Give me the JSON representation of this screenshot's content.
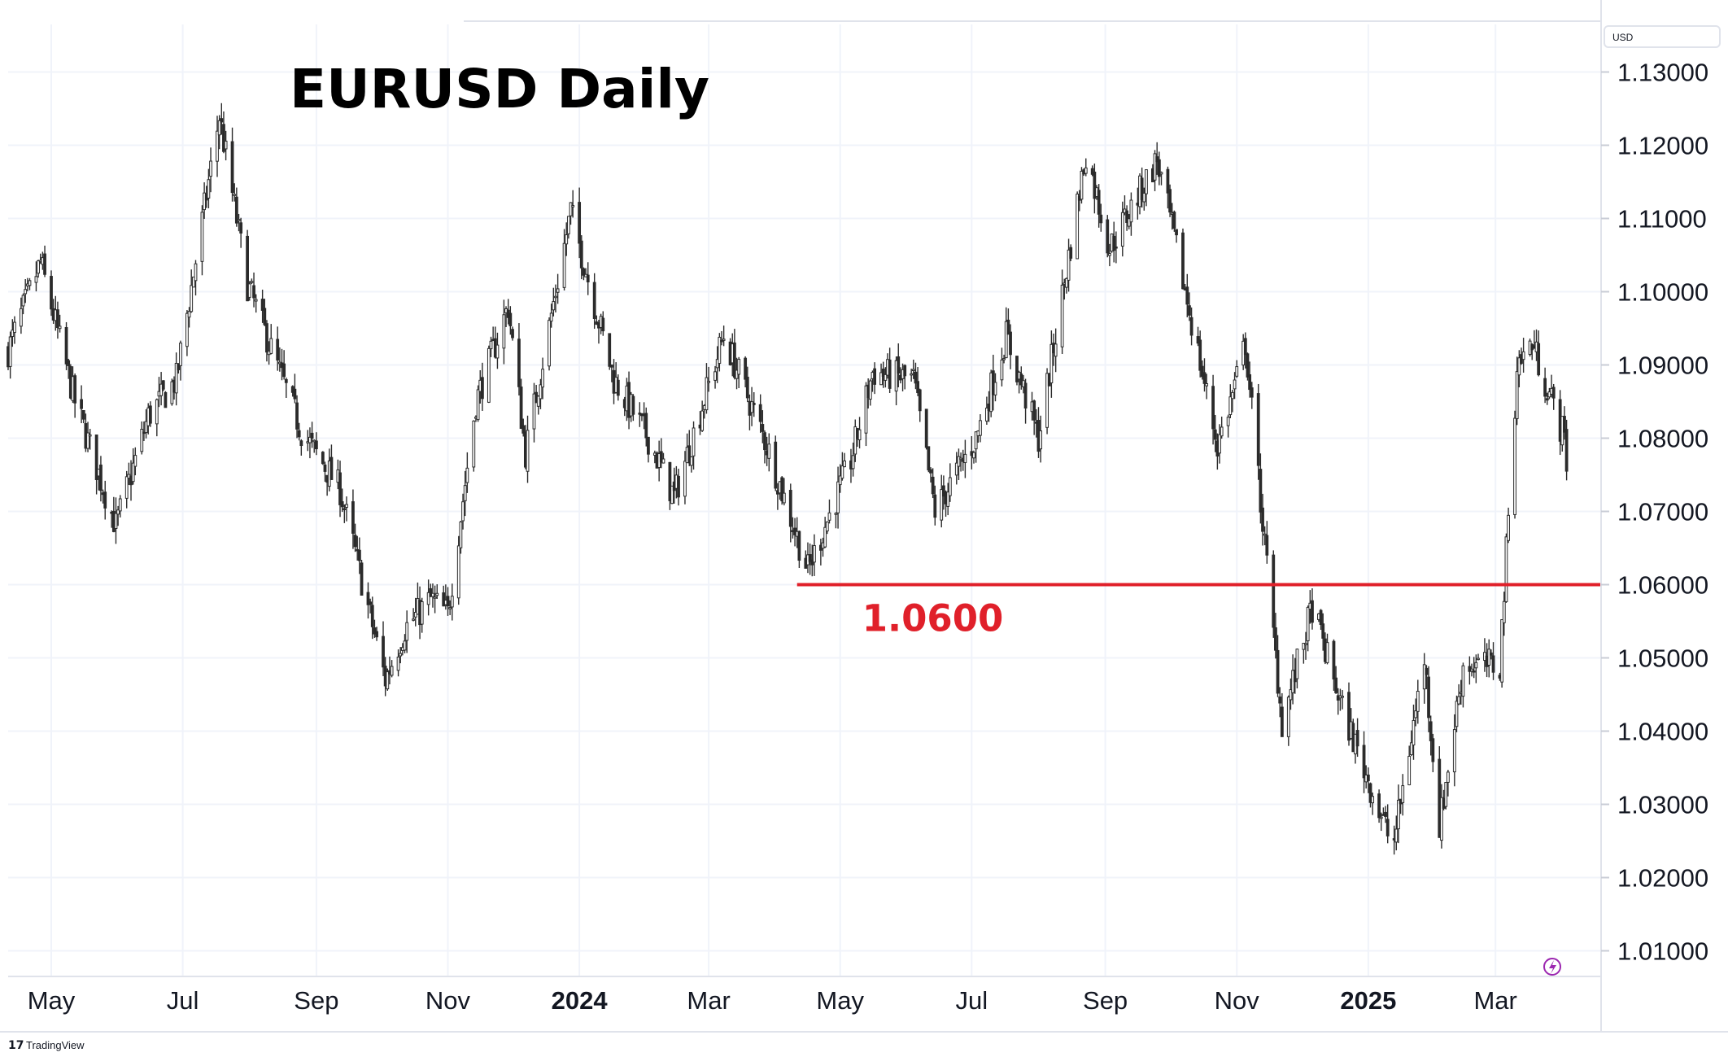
{
  "chart_data": {
    "type": "candlestick",
    "title": "EURUSD Daily",
    "currency_label": "USD",
    "y_ticks": [
      "1.13000",
      "1.12000",
      "1.11000",
      "1.10000",
      "1.09000",
      "1.08000",
      "1.07000",
      "1.06000",
      "1.05000",
      "1.04000",
      "1.03000",
      "1.02000",
      "1.01000"
    ],
    "y_values": [
      1.13,
      1.12,
      1.11,
      1.1,
      1.09,
      1.08,
      1.07,
      1.06,
      1.05,
      1.04,
      1.03,
      1.02,
      1.01
    ],
    "ylim": [
      1.0065,
      1.1365
    ],
    "x_range": [
      "2023-04-11",
      "2025-04-19"
    ],
    "x_ticks": [
      {
        "label": "May",
        "date": "2023-05-01",
        "bold": false
      },
      {
        "label": "Jul",
        "date": "2023-07-01",
        "bold": false
      },
      {
        "label": "Sep",
        "date": "2023-09-01",
        "bold": false
      },
      {
        "label": "Nov",
        "date": "2023-11-01",
        "bold": false
      },
      {
        "label": "2024",
        "date": "2024-01-01",
        "bold": true
      },
      {
        "label": "Mar",
        "date": "2024-03-01",
        "bold": false
      },
      {
        "label": "May",
        "date": "2024-05-01",
        "bold": false
      },
      {
        "label": "Jul",
        "date": "2024-07-01",
        "bold": false
      },
      {
        "label": "Sep",
        "date": "2024-09-01",
        "bold": false
      },
      {
        "label": "Nov",
        "date": "2024-11-01",
        "bold": false
      },
      {
        "label": "2025",
        "date": "2025-01-01",
        "bold": true
      },
      {
        "label": "Mar",
        "date": "2025-03-01",
        "bold": false
      }
    ],
    "close_path": [
      [
        "2023-04-11",
        1.092
      ],
      [
        "2023-04-26",
        1.104
      ],
      [
        "2023-05-12",
        1.085
      ],
      [
        "2023-05-31",
        1.068
      ],
      [
        "2023-06-15",
        1.083
      ],
      [
        "2023-06-28",
        1.088
      ],
      [
        "2023-07-18",
        1.124
      ],
      [
        "2023-07-31",
        1.101
      ],
      [
        "2023-08-25",
        1.081
      ],
      [
        "2023-09-12",
        1.073
      ],
      [
        "2023-10-03",
        1.047
      ],
      [
        "2023-10-12",
        1.054
      ],
      [
        "2023-10-24",
        1.058
      ],
      [
        "2023-11-01",
        1.056
      ],
      [
        "2023-11-14",
        1.085
      ],
      [
        "2023-11-29",
        1.098
      ],
      [
        "2023-12-07",
        1.078
      ],
      [
        "2023-12-28",
        1.111
      ],
      [
        "2024-01-17",
        1.088
      ],
      [
        "2024-02-02",
        1.08
      ],
      [
        "2024-02-14",
        1.072
      ],
      [
        "2024-03-08",
        1.094
      ],
      [
        "2024-03-28",
        1.079
      ],
      [
        "2024-04-16",
        1.062
      ],
      [
        "2024-05-06",
        1.077
      ],
      [
        "2024-05-16",
        1.089
      ],
      [
        "2024-06-04",
        1.088
      ],
      [
        "2024-06-14",
        1.07
      ],
      [
        "2024-07-03",
        1.08
      ],
      [
        "2024-07-17",
        1.094
      ],
      [
        "2024-08-01",
        1.08
      ],
      [
        "2024-08-23",
        1.119
      ],
      [
        "2024-09-03",
        1.106
      ],
      [
        "2024-09-25",
        1.118
      ],
      [
        "2024-10-01",
        1.11
      ],
      [
        "2024-10-23",
        1.079
      ],
      [
        "2024-10-31",
        1.087
      ],
      [
        "2024-11-05",
        1.093
      ],
      [
        "2024-11-22",
        1.041
      ],
      [
        "2024-12-06",
        1.057
      ],
      [
        "2024-12-20",
        1.043
      ],
      [
        "2025-01-10",
        1.026
      ],
      [
        "2025-01-13",
        1.025
      ],
      [
        "2025-01-27",
        1.05
      ],
      [
        "2025-02-03",
        1.027
      ],
      [
        "2025-02-14",
        1.049
      ],
      [
        "2025-03-03",
        1.049
      ],
      [
        "2025-03-11",
        1.09
      ],
      [
        "2025-03-18",
        1.093
      ],
      [
        "2025-04-02",
        1.08
      ],
      [
        "2025-04-03",
        1.077
      ]
    ],
    "annotations": [
      {
        "type": "horizontal_line",
        "value": 1.06,
        "from": "2024-04-11",
        "label": "1.0600",
        "color": "#e0202a"
      }
    ],
    "grid": true,
    "colors": {
      "candle": "#2b2b2b",
      "grid": "#f0f3fa",
      "line": "#e0202a",
      "axis": "#e0e3eb",
      "text": "#131722"
    }
  },
  "branding": {
    "name": "TradingView",
    "logo_mark": "17"
  },
  "widgets": {
    "flash_icon": "lightning-icon"
  }
}
